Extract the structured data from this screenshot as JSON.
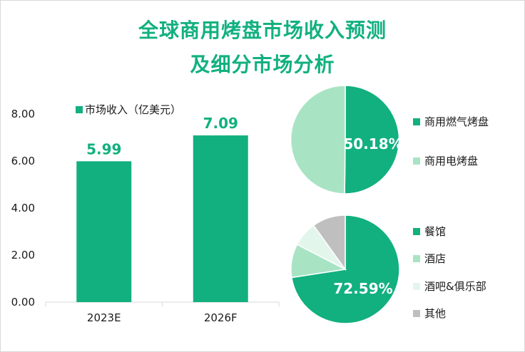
{
  "header": {
    "title_line1": "全球商用烤盘市场收入预测",
    "title_line2": "及细分市场分析"
  },
  "colors": {
    "primary": "#12b07f",
    "light_green": "#a8e4c4",
    "pale_green": "#e3f6ec",
    "gray": "#bfbfbf"
  },
  "chart_data": [
    {
      "type": "bar",
      "title": "",
      "legend": [
        "市场收入（亿美元）"
      ],
      "categories": [
        "2023E",
        "2026F"
      ],
      "series": [
        {
          "name": "市场收入（亿美元）",
          "values": [
            5.99,
            7.09
          ],
          "labels": [
            "5.99",
            "7.09"
          ]
        }
      ],
      "ylim": [
        0,
        8
      ],
      "yticks": [
        "0.00",
        "2.00",
        "4.00",
        "6.00",
        "8.00"
      ],
      "legend_position": "top-left"
    },
    {
      "type": "pie",
      "slices": [
        {
          "name": "商用燃气烤盘",
          "value": 50.18,
          "color": "#12b07f"
        },
        {
          "name": "商用电烤盘",
          "value": 49.82,
          "color": "#a8e4c4"
        }
      ],
      "data_label": "50.18%",
      "legend_position": "right"
    },
    {
      "type": "pie",
      "slices": [
        {
          "name": "餐馆",
          "value": 72.59,
          "color": "#12b07f"
        },
        {
          "name": "酒店",
          "value": 10.0,
          "color": "#a8e4c4"
        },
        {
          "name": "酒吧&俱乐部",
          "value": 7.5,
          "color": "#e3f6ec"
        },
        {
          "name": "其他",
          "value": 9.91,
          "color": "#bfbfbf"
        }
      ],
      "data_label": "72.59%",
      "legend_position": "right"
    }
  ]
}
